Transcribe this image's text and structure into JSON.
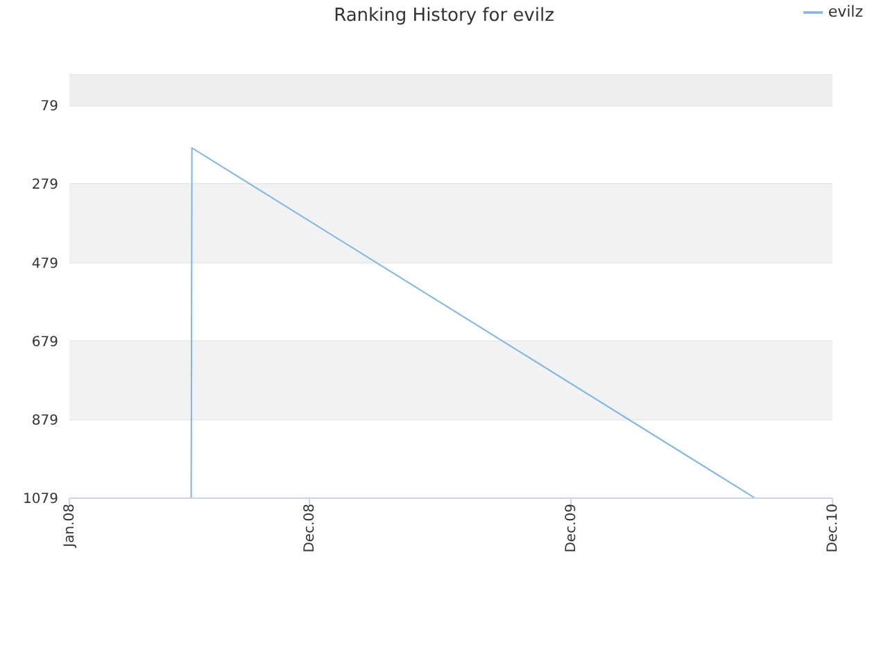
{
  "chart_data": {
    "type": "line",
    "title": "Ranking History for evilz",
    "x": [
      "2008-06-19",
      "2008-06-20",
      "2010-08-15"
    ],
    "series": [
      {
        "name": "evilz",
        "color": "#7cb5ec",
        "values": [
          1079,
          187,
          1079
        ]
      }
    ],
    "xlim": [
      "2008-01",
      "2010-12"
    ],
    "xticks": [
      {
        "value": "2008-01",
        "label": "Jan.08"
      },
      {
        "value": "2008-12",
        "label": "Dec.08"
      },
      {
        "value": "2009-12",
        "label": "Dec.09"
      },
      {
        "value": "2010-12",
        "label": "Dec.10"
      }
    ],
    "ylim": [
      1079,
      1
    ],
    "yticks": [
      79,
      279,
      479,
      679,
      879,
      1079
    ],
    "bands": [
      {
        "axis": "y",
        "from": 1,
        "to": 79,
        "color": "#eeeeee"
      },
      {
        "axis": "y",
        "from": 279,
        "to": 479,
        "color": "#f2f2f2"
      },
      {
        "axis": "y",
        "from": 679,
        "to": 879,
        "color": "#f2f2f2"
      }
    ],
    "grid": "y",
    "legend": "top right",
    "marker": "none",
    "line_style": "solid"
  }
}
